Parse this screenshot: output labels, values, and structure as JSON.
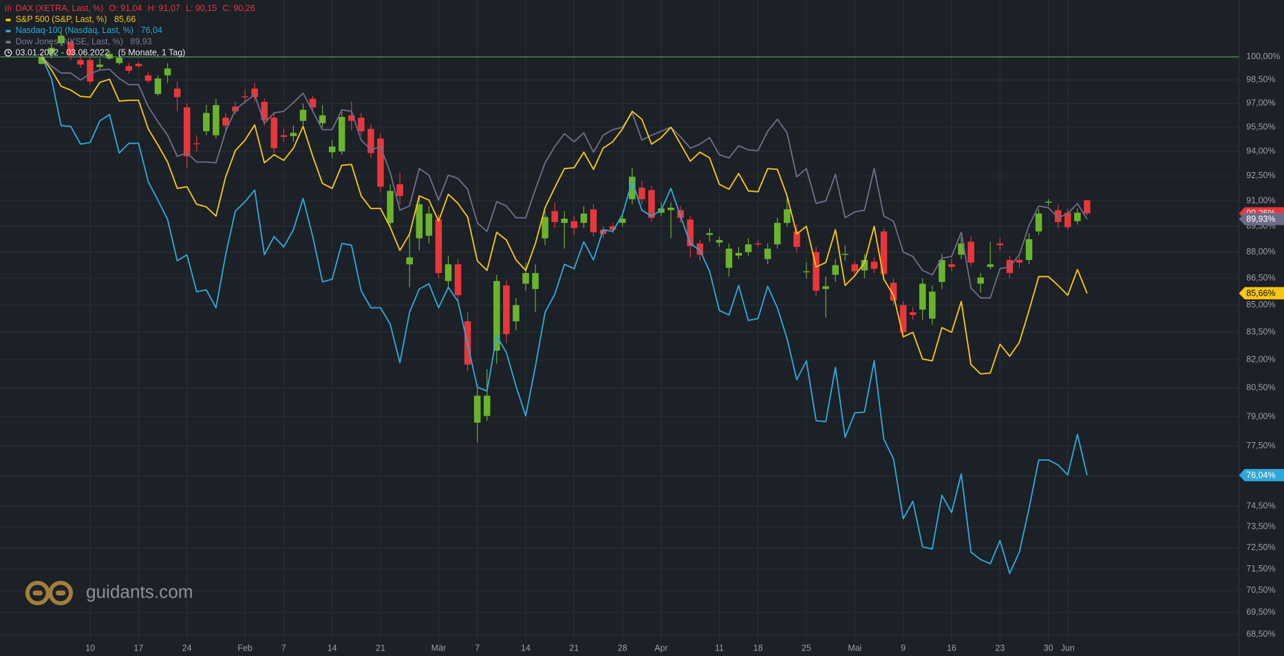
{
  "chart_data": {
    "type": "candlestick",
    "date_range": "03.01.2022 - 03.06.2022",
    "duration": "(5 Monate, 1 Tag)",
    "watermark": "guidants.com",
    "log_scale": true,
    "grid": true,
    "baseline": 100,
    "baseline_color": "#4caf50",
    "ylim": [
      68.2,
      103.8
    ],
    "yticks": [
      {
        "value": 100,
        "label": "100,00%"
      },
      {
        "value": 98.5,
        "label": "98,50%"
      },
      {
        "value": 97,
        "label": "97,00%"
      },
      {
        "value": 95.5,
        "label": "95,50%"
      },
      {
        "value": 94,
        "label": "94,00%"
      },
      {
        "value": 92.5,
        "label": "92,50%"
      },
      {
        "value": 91,
        "label": "91,00%"
      },
      {
        "value": 89.5,
        "label": "89,50%"
      },
      {
        "value": 88,
        "label": "88,00%"
      },
      {
        "value": 86.5,
        "label": "86,50%"
      },
      {
        "value": 85,
        "label": "85,00%"
      },
      {
        "value": 83.5,
        "label": "83,50%"
      },
      {
        "value": 82,
        "label": "82,00%"
      },
      {
        "value": 80.5,
        "label": "80,50%"
      },
      {
        "value": 79,
        "label": "79,00%"
      },
      {
        "value": 77.5,
        "label": "77,50%"
      },
      {
        "value": 76,
        "label": "76,00%"
      },
      {
        "value": 74.5,
        "label": "74,50%"
      },
      {
        "value": 73.5,
        "label": "73,50%"
      },
      {
        "value": 72.5,
        "label": "72,50%"
      },
      {
        "value": 71.5,
        "label": "71,50%"
      },
      {
        "value": 70.5,
        "label": "70,50%"
      },
      {
        "value": 69.5,
        "label": "69,50%"
      },
      {
        "value": 68.5,
        "label": "68,50%"
      }
    ],
    "x": [
      "2022-01-03",
      "2022-01-04",
      "2022-01-05",
      "2022-01-06",
      "2022-01-07",
      "2022-01-10",
      "2022-01-11",
      "2022-01-12",
      "2022-01-13",
      "2022-01-14",
      "2022-01-17",
      "2022-01-18",
      "2022-01-19",
      "2022-01-20",
      "2022-01-21",
      "2022-01-24",
      "2022-01-25",
      "2022-01-26",
      "2022-01-27",
      "2022-01-28",
      "2022-01-31",
      "2022-02-01",
      "2022-02-02",
      "2022-02-03",
      "2022-02-04",
      "2022-02-07",
      "2022-02-08",
      "2022-02-09",
      "2022-02-10",
      "2022-02-11",
      "2022-02-14",
      "2022-02-15",
      "2022-02-16",
      "2022-02-17",
      "2022-02-18",
      "2022-02-21",
      "2022-02-22",
      "2022-02-23",
      "2022-02-24",
      "2022-02-25",
      "2022-02-28",
      "2022-03-01",
      "2022-03-02",
      "2022-03-03",
      "2022-03-04",
      "2022-03-07",
      "2022-03-08",
      "2022-03-09",
      "2022-03-10",
      "2022-03-11",
      "2022-03-14",
      "2022-03-15",
      "2022-03-16",
      "2022-03-17",
      "2022-03-18",
      "2022-03-21",
      "2022-03-22",
      "2022-03-23",
      "2022-03-24",
      "2022-03-25",
      "2022-03-28",
      "2022-03-29",
      "2022-03-30",
      "2022-03-31",
      "2022-04-01",
      "2022-04-04",
      "2022-04-05",
      "2022-04-06",
      "2022-04-07",
      "2022-04-08",
      "2022-04-11",
      "2022-04-12",
      "2022-04-13",
      "2022-04-14",
      "2022-04-18",
      "2022-04-19",
      "2022-04-20",
      "2022-04-21",
      "2022-04-22",
      "2022-04-25",
      "2022-04-26",
      "2022-04-27",
      "2022-04-28",
      "2022-04-29",
      "2022-05-02",
      "2022-05-03",
      "2022-05-04",
      "2022-05-05",
      "2022-05-06",
      "2022-05-09",
      "2022-05-10",
      "2022-05-11",
      "2022-05-12",
      "2022-05-13",
      "2022-05-16",
      "2022-05-17",
      "2022-05-18",
      "2022-05-19",
      "2022-05-20",
      "2022-05-23",
      "2022-05-24",
      "2022-05-25",
      "2022-05-26",
      "2022-05-27",
      "2022-05-30",
      "2022-05-31",
      "2022-06-01",
      "2022-06-02",
      "2022-06-03"
    ],
    "xticks": [
      {
        "value": "2022-01-10",
        "label": "10"
      },
      {
        "value": "2022-01-17",
        "label": "17"
      },
      {
        "value": "2022-01-24",
        "label": "24"
      },
      {
        "value": "2022-02-01",
        "label": "Feb"
      },
      {
        "value": "2022-02-07",
        "label": "7"
      },
      {
        "value": "2022-02-14",
        "label": "14"
      },
      {
        "value": "2022-02-21",
        "label": "21"
      },
      {
        "value": "2022-03-01",
        "label": "Mär"
      },
      {
        "value": "2022-03-07",
        "label": "7"
      },
      {
        "value": "2022-03-14",
        "label": "14"
      },
      {
        "value": "2022-03-21",
        "label": "21"
      },
      {
        "value": "2022-03-28",
        "label": "28"
      },
      {
        "value": "2022-04-01",
        "label": "Apr"
      },
      {
        "value": "2022-04-11",
        "label": "11"
      },
      {
        "value": "2022-04-18",
        "label": "18"
      },
      {
        "value": "2022-04-25",
        "label": "25"
      },
      {
        "value": "2022-05-02",
        "label": "Mai"
      },
      {
        "value": "2022-05-09",
        "label": "9"
      },
      {
        "value": "2022-05-16",
        "label": "16"
      },
      {
        "value": "2022-05-23",
        "label": "23"
      },
      {
        "value": "2022-05-30",
        "label": "30"
      },
      {
        "value": "2022-06-01",
        "label": "Jun"
      }
    ],
    "series": [
      {
        "name": "DAX (XETRA, Last, %)",
        "type": "candlestick",
        "color": "#e8373b",
        "up_color": "#6ab42d",
        "down_color": "#e8373b",
        "legend_values": [
          "O: 91,04",
          "H: 91,07",
          "L: 90,15",
          "C: 90,26"
        ],
        "last_label": "90,26%",
        "open": [
          99.55,
          100.2,
          100.9,
          101.0,
          99.8,
          99.8,
          99.35,
          99.9,
          99.6,
          99.4,
          99.55,
          98.8,
          97.6,
          98.8,
          97.95,
          96.75,
          94.5,
          95.25,
          95.0,
          96.1,
          96.8,
          97.45,
          97.95,
          97.1,
          96.1,
          95.0,
          94.95,
          95.9,
          97.3,
          95.75,
          93.95,
          94.0,
          96.25,
          96.1,
          95.4,
          94.8,
          89.7,
          92.0,
          87.3,
          88.8,
          88.95,
          89.9,
          86.35,
          87.3,
          84.1,
          78.7,
          79.05,
          82.5,
          86.1,
          84.1,
          86.2,
          85.9,
          88.8,
          90.4,
          89.7,
          89.8,
          89.7,
          90.5,
          89.3,
          89.5,
          89.7,
          91.1,
          91.8,
          91.65,
          90.3,
          90.45,
          90.45,
          89.9,
          88.5,
          89.0,
          88.55,
          87.1,
          87.8,
          88.0,
          88.5,
          87.6,
          88.45,
          89.7,
          89.2,
          86.85,
          88.0,
          85.9,
          86.7,
          87.85,
          87.3,
          86.95,
          87.45,
          89.2,
          86.25,
          85.0,
          84.6,
          84.75,
          84.25,
          86.3,
          87.3,
          87.85,
          88.6,
          86.2,
          87.15,
          88.5,
          87.55,
          87.55,
          87.55,
          89.2,
          90.9,
          90.45,
          90.3,
          89.8,
          91.04
        ],
        "high": [
          100.2,
          100.9,
          101.6,
          101.1,
          100.1,
          100.0,
          99.9,
          100.4,
          100.3,
          99.6,
          99.65,
          99.0,
          98.8,
          99.6,
          98.4,
          97.0,
          95.0,
          96.9,
          97.3,
          96.4,
          97.1,
          97.9,
          98.3,
          97.3,
          96.4,
          95.4,
          95.6,
          97.0,
          97.5,
          96.9,
          94.7,
          96.5,
          97.1,
          96.4,
          95.7,
          95.1,
          92.0,
          92.7,
          89.0,
          91.2,
          90.7,
          90.2,
          87.8,
          87.6,
          84.6,
          80.7,
          81.5,
          86.7,
          86.4,
          85.4,
          87.4,
          87.3,
          90.4,
          90.9,
          90.4,
          90.1,
          90.7,
          90.8,
          89.5,
          89.7,
          90.3,
          93.0,
          92.2,
          91.9,
          90.9,
          90.9,
          90.7,
          90.1,
          88.7,
          89.4,
          88.9,
          88.5,
          88.3,
          88.8,
          88.7,
          88.5,
          90.0,
          91.3,
          89.6,
          87.4,
          88.3,
          86.6,
          87.6,
          88.4,
          87.5,
          87.9,
          87.7,
          89.4,
          86.5,
          85.2,
          84.9,
          86.5,
          86.1,
          87.9,
          87.6,
          88.9,
          88.9,
          86.8,
          88.6,
          88.8,
          87.8,
          87.7,
          89.1,
          90.5,
          91.1,
          90.8,
          90.55,
          90.55,
          91.07
        ],
        "low": [
          99.5,
          99.9,
          100.7,
          99.8,
          99.3,
          98.2,
          99.2,
          99.8,
          99.5,
          98.9,
          99.3,
          98.3,
          97.5,
          98.3,
          96.5,
          93.0,
          94.0,
          95.0,
          94.8,
          95.3,
          96.3,
          97.0,
          97.1,
          95.6,
          93.9,
          94.6,
          94.6,
          95.6,
          96.5,
          95.5,
          93.6,
          93.8,
          95.3,
          95.0,
          93.6,
          91.5,
          89.4,
          90.8,
          86.0,
          88.1,
          88.5,
          86.5,
          85.9,
          85.2,
          81.4,
          77.7,
          78.8,
          81.8,
          82.9,
          83.6,
          85.8,
          84.6,
          88.4,
          89.4,
          88.2,
          89.0,
          89.4,
          88.9,
          88.8,
          89.1,
          89.5,
          90.8,
          90.8,
          89.8,
          90.1,
          88.8,
          89.7,
          87.7,
          87.5,
          88.6,
          88.3,
          86.6,
          87.6,
          87.8,
          88.3,
          87.3,
          88.2,
          89.5,
          88.0,
          86.5,
          85.5,
          84.3,
          86.3,
          87.5,
          86.6,
          86.5,
          86.8,
          86.5,
          85.0,
          83.2,
          84.2,
          84.2,
          83.9,
          85.9,
          86.9,
          87.6,
          87.2,
          85.7,
          87.0,
          88.1,
          86.5,
          87.1,
          87.3,
          89.0,
          90.7,
          89.4,
          89.3,
          89.6,
          90.15
        ],
        "close": [
          100,
          100.6,
          101.4,
          100.1,
          99.5,
          98.4,
          99.5,
          100.2,
          99.95,
          99.1,
          99.4,
          98.45,
          98.6,
          99.25,
          97.4,
          93.7,
          94.45,
          96.4,
          96.9,
          95.6,
          96.5,
          97.4,
          97.4,
          95.95,
          94.2,
          94.9,
          95.15,
          96.6,
          96.75,
          96.25,
          94.3,
          96.15,
          95.9,
          95.25,
          93.9,
          91.85,
          91.6,
          91.3,
          87.7,
          90.8,
          90.25,
          86.8,
          87.3,
          85.55,
          81.75,
          80.1,
          80.1,
          86.35,
          83.4,
          85.0,
          86.8,
          86.8,
          90.05,
          89.75,
          89.95,
          89.4,
          90.25,
          89.15,
          89.05,
          89.3,
          89.95,
          92.45,
          91.1,
          90.0,
          90.55,
          90.6,
          90.0,
          88.35,
          87.85,
          89.1,
          88.7,
          88.2,
          87.95,
          88.45,
          88.45,
          88.2,
          89.7,
          90.5,
          88.3,
          86.9,
          85.8,
          86.05,
          87.25,
          87.9,
          86.9,
          87.55,
          87.05,
          86.75,
          85.25,
          83.5,
          84.45,
          86.2,
          85.75,
          87.55,
          87.15,
          88.5,
          87.4,
          86.55,
          87.3,
          88.4,
          86.8,
          87.4,
          88.75,
          90.25,
          90.95,
          89.75,
          89.45,
          90.3,
          90.26
        ]
      },
      {
        "name": "S&P 500 (S&P, Last, %)",
        "type": "line",
        "color": "#f5c518",
        "legend_value": "85,66",
        "last_label": "85,66%",
        "values": [
          100,
          99.15,
          98.1,
          97.85,
          97.45,
          97.4,
          98.35,
          98.55,
          97.15,
          97.2,
          97.2,
          95.4,
          94.4,
          93.35,
          91.75,
          91.85,
          90.8,
          90.65,
          90.1,
          92.45,
          94.05,
          94.7,
          95.65,
          93.3,
          93.8,
          93.45,
          94.2,
          95.55,
          93.7,
          92.05,
          91.75,
          93.15,
          93.2,
          91.3,
          90.55,
          90.55,
          89.45,
          88.1,
          89.05,
          91.3,
          91.05,
          89.8,
          91.4,
          90.85,
          90.05,
          87.5,
          86.95,
          89.15,
          88.7,
          87.55,
          86.95,
          88.5,
          90.6,
          91.8,
          92.95,
          93.0,
          93.95,
          92.9,
          94.2,
          94.6,
          95.4,
          96.5,
          96.0,
          94.45,
          94.85,
          95.5,
          94.45,
          93.4,
          93.95,
          93.6,
          92.0,
          91.7,
          92.65,
          91.6,
          91.55,
          92.95,
          92.9,
          91.3,
          89.05,
          89.5,
          87.15,
          87.4,
          89.3,
          86.1,
          86.65,
          87.4,
          89.5,
          86.45,
          85.55,
          83.25,
          83.5,
          82.05,
          81.95,
          83.75,
          83.5,
          85.2,
          81.75,
          81.25,
          81.3,
          82.85,
          82.2,
          82.95,
          84.7,
          86.6,
          86.6,
          86.1,
          85.55,
          87.0,
          85.66
        ]
      },
      {
        "name": "Nasdaq-100 (Nasdaq, Last, %)",
        "type": "line",
        "color": "#2ea8d6",
        "legend_value": "76,04",
        "last_label": "76,04%",
        "values": [
          100,
          98.6,
          95.6,
          95.55,
          94.45,
          94.55,
          95.9,
          96.3,
          93.9,
          94.5,
          94.5,
          92.15,
          91.05,
          89.9,
          87.5,
          87.85,
          85.75,
          85.85,
          84.85,
          87.85,
          90.4,
          90.95,
          91.65,
          87.85,
          88.9,
          88.3,
          89.3,
          91.15,
          88.9,
          86.3,
          86.45,
          88.5,
          88.4,
          85.8,
          84.85,
          84.85,
          83.95,
          81.85,
          84.6,
          85.9,
          86.2,
          84.85,
          86.0,
          85.2,
          82.85,
          80.55,
          80.35,
          83.3,
          82.4,
          80.6,
          79.05,
          81.65,
          84.6,
          85.6,
          87.3,
          87.05,
          88.6,
          87.55,
          89.3,
          89.2,
          90.2,
          92.2,
          90.45,
          90.1,
          90.45,
          91.75,
          90.1,
          88.5,
          88.1,
          86.9,
          84.7,
          84.45,
          86.1,
          84.15,
          84.25,
          86.05,
          84.85,
          83.15,
          80.95,
          81.95,
          78.8,
          78.75,
          81.6,
          77.95,
          79.2,
          79.25,
          81.95,
          77.85,
          76.85,
          73.9,
          74.75,
          72.55,
          72.45,
          75.05,
          74.2,
          76.1,
          72.3,
          71.95,
          71.75,
          72.85,
          71.3,
          72.3,
          74.4,
          76.8,
          76.8,
          76.55,
          76.05,
          78.1,
          76.04
        ]
      },
      {
        "name": "Dow Jones (NYSE, Last, %)",
        "type": "line",
        "color": "#6e6c8a",
        "legend_value": "89,93",
        "last_label": "89,93%",
        "values": [
          100,
          99.4,
          98.95,
          98.95,
          98.5,
          98.9,
          99.15,
          99.2,
          98.6,
          98.2,
          98.2,
          96.8,
          95.85,
          95.0,
          93.7,
          93.9,
          93.35,
          93.35,
          93.3,
          95.25,
          96.6,
          97.1,
          97.55,
          95.75,
          96.4,
          96.5,
          97.05,
          97.65,
          96.5,
          95.35,
          95.35,
          96.6,
          96.5,
          94.7,
          94.1,
          94.3,
          92.7,
          90.45,
          90.7,
          92.95,
          92.55,
          91.05,
          92.55,
          92.35,
          91.7,
          89.7,
          89.2,
          90.95,
          90.7,
          90.0,
          90.0,
          91.7,
          93.3,
          94.3,
          95.1,
          94.6,
          95.15,
          93.95,
          95.0,
          95.35,
          95.5,
          96.4,
          94.7,
          95.0,
          95.25,
          95.5,
          94.9,
          94.2,
          94.45,
          94.85,
          93.8,
          93.6,
          94.35,
          94.1,
          94.05,
          95.25,
          96.0,
          95.15,
          92.45,
          92.95,
          90.85,
          91.0,
          92.6,
          90.0,
          90.35,
          90.45,
          92.95,
          90.1,
          89.8,
          88.0,
          87.75,
          86.95,
          86.7,
          87.65,
          87.75,
          89.15,
          85.95,
          85.4,
          85.4,
          87.05,
          87.15,
          87.85,
          89.55,
          90.7,
          90.6,
          90.0,
          90.25,
          90.85,
          89.93
        ]
      }
    ]
  }
}
